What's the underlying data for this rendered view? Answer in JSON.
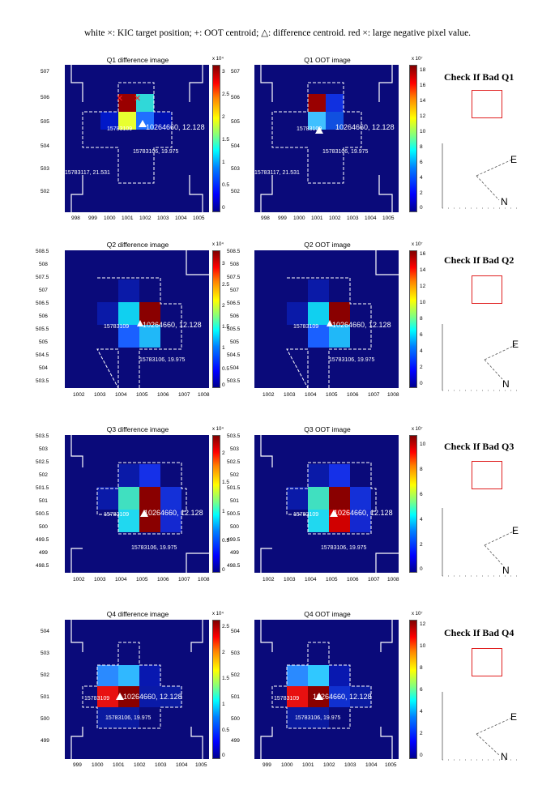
{
  "caption": "white ×: KIC target position; +: OOT centroid; △: difference centroid. red ×: large negative pixel value.",
  "quarters": [
    {
      "diff_title": "Q1 difference image",
      "oot_title": "Q1 OOT image",
      "check_label": "Check If Bad Q1",
      "x_ticks": [
        "998",
        "999",
        "1000",
        "1001",
        "1002",
        "1003",
        "1004",
        "1005"
      ],
      "y_ticks": [
        "507",
        "506",
        "505",
        "504",
        "503",
        "502"
      ],
      "diff_cbar_exp": "x 10⁴",
      "diff_cbar_ticks": [
        "3",
        "2.5",
        "2",
        "1.5",
        "1",
        "0.5",
        "0"
      ],
      "oot_cbar_exp": "x 10⁷",
      "oot_cbar_ticks": [
        "18",
        "16",
        "14",
        "12",
        "10",
        "8",
        "6",
        "4",
        "2",
        "0"
      ],
      "target_label": "10264660, 12.128",
      "star1_label": "15783106, 19.975",
      "star2_label": "15783117, 21.531",
      "star3_label": "15783109",
      "compass_e": "E",
      "compass_n": "N"
    },
    {
      "diff_title": "Q2 difference image",
      "oot_title": "Q2 OOT image",
      "check_label": "Check If Bad Q2",
      "x_ticks": [
        "1002",
        "1003",
        "1004",
        "1005",
        "1006",
        "1007",
        "1008"
      ],
      "y_ticks": [
        "508.5",
        "508",
        "507.5",
        "507",
        "506.5",
        "506",
        "505.5",
        "505",
        "504.5",
        "504",
        "503.5"
      ],
      "diff_cbar_exp": "x 10⁴",
      "diff_cbar_ticks": [
        "3",
        "2.5",
        "2",
        "1.5",
        "1",
        "0.5",
        "0"
      ],
      "oot_cbar_exp": "x 10⁷",
      "oot_cbar_ticks": [
        "16",
        "14",
        "12",
        "10",
        "8",
        "6",
        "4",
        "2",
        "0"
      ],
      "target_label": "10264660, 12.128",
      "star1_label": "15783106, 19.975",
      "star3_label": "15783109",
      "compass_e": "E",
      "compass_n": "N"
    },
    {
      "diff_title": "Q3 difference image",
      "oot_title": "Q3 OOT image",
      "check_label": "Check If Bad Q3",
      "x_ticks": [
        "1002",
        "1003",
        "1004",
        "1005",
        "1006",
        "1007",
        "1008"
      ],
      "y_ticks": [
        "503.5",
        "503",
        "502.5",
        "502",
        "501.5",
        "501",
        "500.5",
        "500",
        "499.5",
        "499",
        "498.5"
      ],
      "diff_cbar_exp": "x 10⁴",
      "diff_cbar_ticks": [
        "2",
        "1.5",
        "1",
        "0.5",
        "0"
      ],
      "oot_cbar_exp": "x 10⁷",
      "oot_cbar_ticks": [
        "10",
        "8",
        "6",
        "4",
        "2",
        "0"
      ],
      "target_label": "10264660, 12.128",
      "star1_label": "15783106, 19.975",
      "star3_label": "15783109",
      "compass_e": "E",
      "compass_n": "N"
    },
    {
      "diff_title": "Q4 difference image",
      "oot_title": "Q4 OOT image",
      "check_label": "Check If Bad Q4",
      "x_ticks": [
        "999",
        "1000",
        "1001",
        "1002",
        "1003",
        "1004",
        "1005"
      ],
      "y_ticks": [
        "504",
        "503",
        "502",
        "501",
        "500",
        "499"
      ],
      "diff_cbar_exp": "x 10⁴",
      "diff_cbar_ticks": [
        "2.5",
        "2",
        "1.5",
        "1",
        "0.5",
        "0"
      ],
      "oot_cbar_exp": "x 10⁷",
      "oot_cbar_ticks": [
        "12",
        "10",
        "8",
        "6",
        "4",
        "2",
        "0"
      ],
      "target_label": "10264660, 12.128",
      "star1_label": "15783106, 19.975",
      "star3_label": "15783109",
      "compass_e": "E",
      "compass_n": "N"
    }
  ]
}
